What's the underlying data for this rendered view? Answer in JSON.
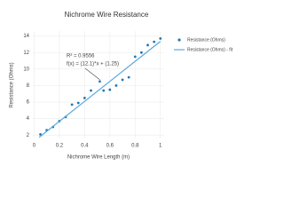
{
  "chart_data": {
    "type": "scatter",
    "title": "Nichrome Wire Resistance",
    "x_label": "Nichrome Wire Length (m)",
    "y_label": "Resistance (Ohms)",
    "annotations": [
      "R² = 0.9556",
      "f(x) = (12.1)*x + (1.25)"
    ],
    "xlim": [
      -0.01,
      1.03
    ],
    "ylim": [
      1.6,
      14.6
    ],
    "xticks": [
      0,
      0.2,
      0.4,
      0.6,
      0.8,
      1
    ],
    "yticks": [
      2,
      4,
      6,
      8,
      10,
      12,
      14
    ],
    "grid": true,
    "legend": "top-right",
    "series": [
      {
        "name": "Resistance (Ohms)",
        "color": "#1f77b4",
        "mode": "markers",
        "x": [
          0.05,
          0.1,
          0.15,
          0.2,
          0.25,
          0.3,
          0.35,
          0.4,
          0.45,
          0.52,
          0.55,
          0.6,
          0.65,
          0.7,
          0.75,
          0.8,
          0.85,
          0.9,
          0.95,
          1.0
        ],
        "values": [
          2.1,
          2.6,
          3.0,
          3.7,
          4.2,
          5.7,
          5.9,
          6.5,
          7.4,
          8.5,
          7.4,
          7.5,
          8.0,
          8.7,
          9.0,
          11.5,
          12.0,
          12.9,
          13.3,
          13.7
        ]
      },
      {
        "name": "Resistance (Ohms) - fit",
        "color": "#5aa9dc",
        "mode": "line",
        "x": [
          0.04,
          1.0
        ],
        "values": [
          1.734,
          13.35
        ]
      }
    ]
  }
}
